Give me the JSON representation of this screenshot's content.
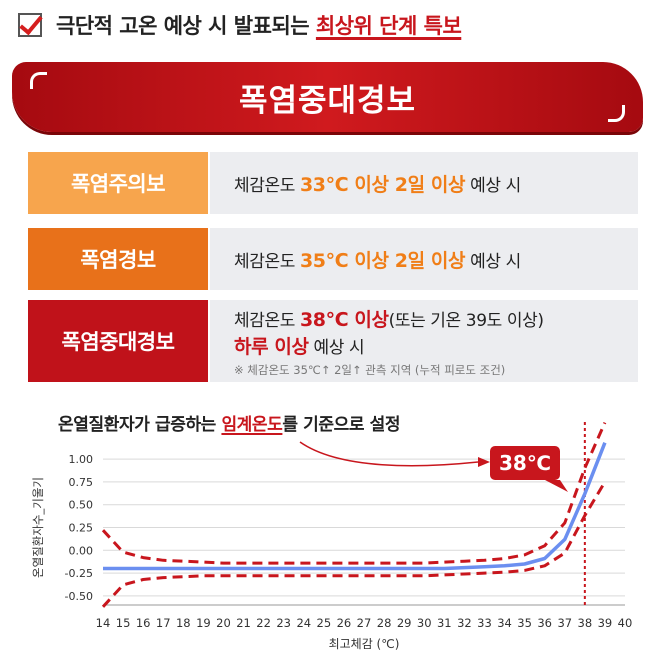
{
  "header": {
    "prefix": "극단적 고온 예상 시 발표되는 ",
    "highlight": "최상위 단계 특보"
  },
  "banner": {
    "title": "폭염중대경보"
  },
  "levels": [
    {
      "label": "폭염주의보",
      "desc_pre": "체감온도 ",
      "desc_hl": "33℃ 이상 2일 이상",
      "desc_post": " 예상 시"
    },
    {
      "label": "폭염경보",
      "desc_pre": "체감온도 ",
      "desc_hl": "35℃ 이상 2일 이상",
      "desc_post": " 예상 시"
    },
    {
      "label": "폭염중대경보",
      "desc_pre": "체감온도 ",
      "desc_hl": "38℃ 이상",
      "desc_post": "(또는 기온 39도 이상)",
      "desc2_hl": "하루 이상",
      "desc2_post": " 예상 시",
      "note": "※ 체감온도 35℃↑ 2일↑ 관측 지역 (누적 피로도 조건)"
    }
  ],
  "chart_title": {
    "pre": "온열질환자가 급증하는 ",
    "hl": "임계온도",
    "post": "를 기준으로 설정"
  },
  "chart_data": {
    "type": "line",
    "xlabel": "최고체감 (℃)",
    "ylabel": "온열질환자수_기울기",
    "x": [
      14,
      15,
      16,
      17,
      18,
      19,
      20,
      21,
      22,
      23,
      24,
      25,
      26,
      27,
      28,
      29,
      30,
      31,
      32,
      33,
      34,
      35,
      36,
      37,
      38,
      39
    ],
    "xlim": [
      14,
      40
    ],
    "x_ticks": [
      14,
      15,
      16,
      17,
      18,
      19,
      20,
      21,
      22,
      23,
      24,
      25,
      26,
      27,
      28,
      29,
      30,
      31,
      32,
      33,
      34,
      35,
      36,
      37,
      38,
      39,
      40
    ],
    "ylim": [
      -0.6,
      1.1
    ],
    "y_ticks": [
      -0.5,
      -0.25,
      0.0,
      0.25,
      0.5,
      0.75,
      1.0
    ],
    "grid": true,
    "series": [
      {
        "values": [
          -0.2,
          -0.2,
          -0.2,
          -0.2,
          -0.2,
          -0.2,
          -0.2,
          -0.2,
          -0.2,
          -0.2,
          -0.2,
          -0.2,
          -0.2,
          -0.2,
          -0.2,
          -0.2,
          -0.2,
          -0.2,
          -0.19,
          -0.18,
          -0.17,
          -0.15,
          -0.09,
          0.12,
          0.62,
          1.18
        ],
        "color": "#6b8ff0",
        "style": "solid"
      },
      {
        "values": [
          0.22,
          -0.02,
          -0.08,
          -0.11,
          -0.12,
          -0.13,
          -0.14,
          -0.14,
          -0.14,
          -0.14,
          -0.14,
          -0.14,
          -0.14,
          -0.14,
          -0.14,
          -0.14,
          -0.14,
          -0.13,
          -0.12,
          -0.11,
          -0.09,
          -0.05,
          0.05,
          0.3,
          0.9,
          1.4
        ],
        "color": "#c8161d",
        "style": "dashed"
      },
      {
        "values": [
          -0.62,
          -0.38,
          -0.32,
          -0.3,
          -0.29,
          -0.28,
          -0.28,
          -0.28,
          -0.28,
          -0.28,
          -0.28,
          -0.28,
          -0.28,
          -0.28,
          -0.28,
          -0.28,
          -0.28,
          -0.27,
          -0.26,
          -0.25,
          -0.24,
          -0.22,
          -0.17,
          -0.03,
          0.38,
          0.75
        ],
        "color": "#c8161d",
        "style": "dashed"
      }
    ],
    "threshold_x": 38,
    "annotation": "38℃",
    "colors": {
      "accent": "#c8161d",
      "line": "#6b8ff0"
    }
  }
}
